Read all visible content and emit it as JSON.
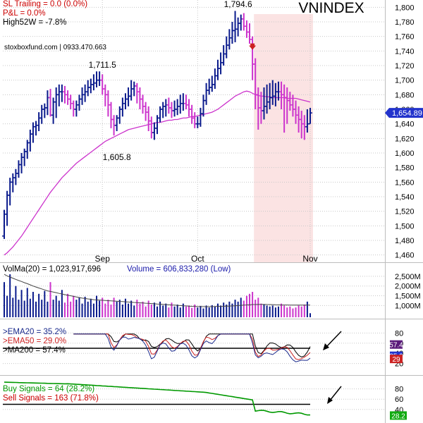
{
  "colors": {
    "up": "#0a1a8c",
    "down": "#cc33cc",
    "ma_line": "#cc33cc",
    "shade": "#fbe3e3",
    "grid": "#c8c8c8",
    "text": "#000000",
    "volume_label": "#1a1aaa",
    "ema20": "#1a2a8c",
    "ema50": "#cc2222",
    "ma200": "#000000",
    "buy": "#009900",
    "sell": "#cc0000",
    "tag_blue": "#2233cc",
    "tag_purple": "#5a1a7a",
    "tag_red": "#cc2222",
    "tag_green": "#11aa11",
    "signal_arrow": "#cc2222"
  },
  "chart_data": [
    {
      "type": "candlestick",
      "title": "VNINDEX",
      "overlay": [
        "SL Trailing = 0.0 (0.0%)",
        "P&L = 0.0%",
        "High52W = -7.8%"
      ],
      "watermark": "stoxboxfund.com | 0933.470.663",
      "price_tag": "1,654.89",
      "ylim": [
        1450,
        1810
      ],
      "y_ticks": [
        "1,460",
        "1,480",
        "1,500",
        "1,520",
        "1,540",
        "1,560",
        "1,580",
        "1,600",
        "1,620",
        "1,640",
        "1,660",
        "1,680",
        "1,700",
        "1,720",
        "1,740",
        "1,760",
        "1,780",
        "1,800"
      ],
      "x_labels": [
        {
          "label": "Sep",
          "bar": 34
        },
        {
          "label": "Oct",
          "bar": 67
        },
        {
          "label": "Nov",
          "bar": 106
        }
      ],
      "annotations": [
        {
          "text": "1,711.5",
          "bar": 34,
          "value": 1711.5,
          "pos": "above"
        },
        {
          "text": "1,605.8",
          "bar": 39,
          "value": 1605.8,
          "pos": "below"
        },
        {
          "text": "1,794.6",
          "bar": 81,
          "value": 1794.6,
          "pos": "above"
        }
      ],
      "shaded_from_bar": 87,
      "signal_arrow_bar": 86,
      "open": [
        1486,
        1516,
        1542,
        1560,
        1566,
        1572,
        1584,
        1594,
        1602,
        1614,
        1626,
        1636,
        1638,
        1648,
        1660,
        1662,
        1676,
        1652,
        1670,
        1680,
        1684,
        1684,
        1680,
        1674,
        1668,
        1660,
        1666,
        1674,
        1680,
        1684,
        1690,
        1694,
        1696,
        1700,
        1700,
        1688,
        1680,
        1666,
        1646,
        1638,
        1648,
        1660,
        1668,
        1674,
        1678,
        1688,
        1692,
        1684,
        1674,
        1664,
        1656,
        1644,
        1628,
        1634,
        1648,
        1660,
        1664,
        1666,
        1662,
        1658,
        1660,
        1664,
        1668,
        1668,
        1666,
        1660,
        1648,
        1640,
        1640,
        1654,
        1672,
        1686,
        1690,
        1694,
        1706,
        1716,
        1724,
        1736,
        1748,
        1758,
        1768,
        1770,
        1778,
        1784,
        1774,
        1766,
        1756,
        1722,
        1680,
        1662,
        1658,
        1664,
        1670,
        1676,
        1678,
        1684,
        1684,
        1680,
        1676,
        1672,
        1666,
        1660,
        1652,
        1646,
        1640,
        1636,
        1640
      ],
      "high": [
        1522,
        1548,
        1566,
        1572,
        1578,
        1590,
        1600,
        1606,
        1618,
        1632,
        1642,
        1644,
        1656,
        1666,
        1668,
        1686,
        1688,
        1676,
        1690,
        1694,
        1694,
        1692,
        1686,
        1680,
        1672,
        1672,
        1680,
        1690,
        1694,
        1700,
        1702,
        1708,
        1712,
        1712,
        1708,
        1694,
        1686,
        1670,
        1652,
        1652,
        1664,
        1676,
        1682,
        1690,
        1700,
        1698,
        1696,
        1690,
        1680,
        1670,
        1664,
        1650,
        1642,
        1652,
        1664,
        1670,
        1674,
        1676,
        1670,
        1672,
        1674,
        1680,
        1682,
        1680,
        1674,
        1666,
        1656,
        1650,
        1662,
        1680,
        1696,
        1702,
        1706,
        1716,
        1728,
        1738,
        1748,
        1760,
        1770,
        1780,
        1795,
        1786,
        1790,
        1792,
        1782,
        1778,
        1760,
        1730,
        1690,
        1684,
        1690,
        1694,
        1696,
        1700,
        1696,
        1698,
        1698,
        1694,
        1690,
        1684,
        1680,
        1672,
        1664,
        1658,
        1652,
        1660,
        1662
      ],
      "low": [
        1482,
        1500,
        1528,
        1546,
        1556,
        1566,
        1572,
        1582,
        1592,
        1602,
        1614,
        1624,
        1630,
        1640,
        1648,
        1652,
        1650,
        1640,
        1648,
        1664,
        1670,
        1668,
        1666,
        1660,
        1650,
        1650,
        1658,
        1666,
        1670,
        1678,
        1682,
        1686,
        1690,
        1692,
        1680,
        1664,
        1650,
        1634,
        1624,
        1630,
        1640,
        1650,
        1660,
        1664,
        1672,
        1678,
        1668,
        1660,
        1654,
        1644,
        1630,
        1620,
        1618,
        1626,
        1642,
        1648,
        1650,
        1654,
        1648,
        1650,
        1652,
        1654,
        1658,
        1660,
        1650,
        1640,
        1634,
        1634,
        1636,
        1650,
        1666,
        1680,
        1684,
        1688,
        1700,
        1708,
        1720,
        1730,
        1742,
        1750,
        1752,
        1760,
        1768,
        1768,
        1758,
        1750,
        1700,
        1660,
        1632,
        1640,
        1646,
        1654,
        1660,
        1666,
        1664,
        1672,
        1660,
        1628,
        1640,
        1658,
        1650,
        1640,
        1628,
        1620,
        1618,
        1628,
        1640
      ],
      "close": [
        1516,
        1542,
        1560,
        1566,
        1572,
        1584,
        1594,
        1602,
        1614,
        1626,
        1636,
        1638,
        1648,
        1660,
        1662,
        1676,
        1652,
        1670,
        1680,
        1684,
        1684,
        1680,
        1674,
        1668,
        1660,
        1666,
        1674,
        1680,
        1684,
        1690,
        1694,
        1696,
        1700,
        1700,
        1688,
        1680,
        1666,
        1646,
        1638,
        1648,
        1660,
        1668,
        1674,
        1678,
        1688,
        1692,
        1684,
        1674,
        1664,
        1656,
        1644,
        1628,
        1634,
        1648,
        1660,
        1664,
        1666,
        1662,
        1658,
        1660,
        1664,
        1668,
        1668,
        1666,
        1660,
        1648,
        1640,
        1640,
        1654,
        1672,
        1686,
        1690,
        1694,
        1706,
        1716,
        1724,
        1736,
        1748,
        1758,
        1768,
        1770,
        1778,
        1784,
        1774,
        1766,
        1756,
        1722,
        1680,
        1662,
        1658,
        1664,
        1670,
        1676,
        1678,
        1684,
        1684,
        1680,
        1676,
        1672,
        1666,
        1660,
        1652,
        1646,
        1640,
        1636,
        1640,
        1655
      ],
      "ma20": [
        1460,
        1463,
        1467,
        1471,
        1476,
        1481,
        1486,
        1492,
        1498,
        1504,
        1510,
        1516,
        1522,
        1528,
        1534,
        1540,
        1546,
        1551,
        1556,
        1561,
        1566,
        1570,
        1574,
        1578,
        1582,
        1586,
        1589,
        1592,
        1595,
        1598,
        1601,
        1604,
        1607,
        1610,
        1613,
        1616,
        1618,
        1620,
        1622,
        1624,
        1626,
        1628,
        1630,
        1632,
        1633,
        1634,
        1635,
        1636,
        1637,
        1638,
        1639,
        1640,
        1641,
        1642,
        1642,
        1643,
        1644,
        1645,
        1645,
        1646,
        1646,
        1647,
        1648,
        1648,
        1649,
        1650,
        1650,
        1651,
        1652,
        1653,
        1654,
        1655,
        1656,
        1658,
        1660,
        1663,
        1666,
        1669,
        1672,
        1675,
        1678,
        1680,
        1682,
        1684,
        1685,
        1684,
        1682,
        1680,
        1679,
        1678,
        1678,
        1677,
        1677,
        1676,
        1676,
        1676,
        1676,
        1676,
        1675,
        1675,
        1675,
        1675,
        1674,
        1673,
        1672,
        1671,
        1670
      ]
    },
    {
      "type": "bar",
      "title": "VolMa(20) = 1,023,917,696",
      "subtitle": "Volume = 606,833,280 (Low)",
      "ylim": [
        400000000,
        3000000000
      ],
      "y_ticks": [
        "1,000M",
        "1,500M",
        "2,000M",
        "2,500M"
      ],
      "values": [
        2200,
        1500,
        2600,
        1400,
        2000,
        1300,
        1800,
        1250,
        1900,
        1350,
        1700,
        1200,
        1600,
        1300,
        1750,
        1200,
        2200,
        1300,
        1500,
        1250,
        1800,
        1150,
        1600,
        1200,
        1500,
        1300,
        1400,
        1100,
        1450,
        1200,
        1350,
        1100,
        1500,
        1250,
        1400,
        1100,
        1300,
        1050,
        1400,
        1200,
        1300,
        1050,
        1350,
        1100,
        1250,
        1000,
        1300,
        1100,
        1200,
        950,
        1250,
        1050,
        1150,
        950,
        1200,
        1000,
        1100,
        900,
        1150,
        950,
        1050,
        900,
        1100,
        950,
        1000,
        880,
        1050,
        900,
        980,
        850,
        1000,
        900,
        1020,
        950,
        1100,
        1000,
        1150,
        1050,
        1200,
        1100,
        1300,
        1200,
        1400,
        1250,
        1500,
        1600,
        1700,
        1300,
        1400,
        1100,
        1050,
        1000,
        950,
        1000,
        900,
        950,
        1100,
        1000,
        900,
        950,
        850,
        900,
        1000,
        950,
        1050,
        1200,
        607
      ],
      "vol_ma": [
        2600,
        2520,
        2460,
        2400,
        2340,
        2280,
        2230,
        2170,
        2120,
        2060,
        2000,
        1950,
        1900,
        1850,
        1800,
        1750,
        1720,
        1690,
        1660,
        1620,
        1590,
        1560,
        1530,
        1500,
        1470,
        1440,
        1410,
        1380,
        1360,
        1340,
        1320,
        1300,
        1290,
        1280,
        1270,
        1260,
        1250,
        1240,
        1230,
        1220,
        1210,
        1200,
        1190,
        1180,
        1170,
        1160,
        1150,
        1140,
        1130,
        1120,
        1110,
        1100,
        1090,
        1080,
        1070,
        1060,
        1050,
        1040,
        1030,
        1020,
        1010,
        1000,
        990,
        980,
        970,
        960,
        955,
        950,
        945,
        940,
        940,
        940,
        945,
        950,
        955,
        960,
        965,
        970,
        975,
        980,
        990,
        1000,
        1010,
        1020,
        1030,
        1040,
        1050,
        1055,
        1060,
        1060,
        1060,
        1055,
        1050,
        1045,
        1040,
        1035,
        1030,
        1030,
        1028,
        1026,
        1025,
        1024,
        1024,
        1024,
        1024,
        1024,
        1024
      ]
    },
    {
      "type": "line",
      "series": [
        {
          "name": ">EMA20 = 35.2%"
        },
        {
          "name": ">EMA50 = 29.0%"
        },
        {
          "name": ">MA200 = 57.4%"
        }
      ],
      "ylim": [
        0,
        100
      ],
      "y_ticks": [
        "20",
        "40",
        "60",
        "80"
      ],
      "reference_line": 50,
      "last_tags": [
        "57.4",
        "35.2",
        "29"
      ]
    },
    {
      "type": "line",
      "series": [
        {
          "name": "Buy Signals = 64 (28.2%)"
        },
        {
          "name": "Sell Signals = 163 (71.8%)"
        }
      ],
      "ylim": [
        0,
        100
      ],
      "y_ticks": [
        "40",
        "60",
        "80"
      ],
      "reference_line": 50,
      "last_tag": "28.2"
    }
  ]
}
